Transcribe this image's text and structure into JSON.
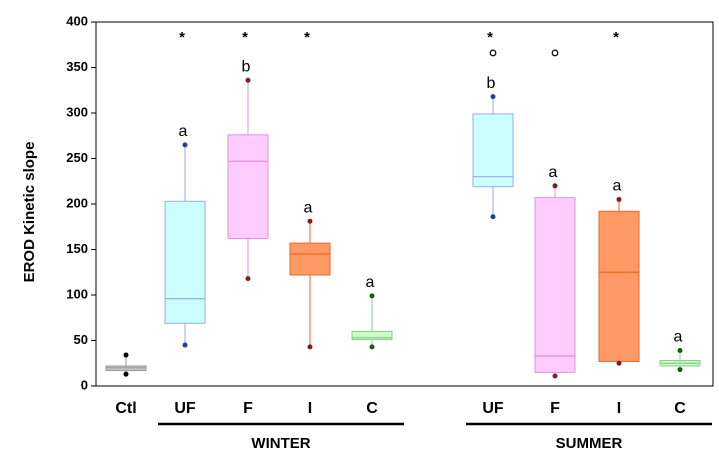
{
  "chart_data": {
    "type": "box",
    "ylabel": "EROD Kinetic slope",
    "ylim": [
      0,
      400
    ],
    "yticks": [
      0,
      50,
      100,
      150,
      200,
      250,
      300,
      350,
      400
    ],
    "groups": [
      {
        "categories": [
          "Ctl"
        ],
        "boxes": [
          {
            "min": 13,
            "q1": 17,
            "median": 20,
            "q3": 22,
            "max": 34,
            "color": "#c8c8c8",
            "edge": "#999999",
            "dot_color": "#000000"
          }
        ]
      },
      {
        "name": "WINTER",
        "categories": [
          "UF",
          "F",
          "I",
          "C"
        ],
        "boxes": [
          {
            "min": 45,
            "q1": 69,
            "median": 96,
            "q3": 203,
            "max": 265,
            "color": "#ccffff",
            "edge": "#99aaee",
            "dot_color": "#1f3f9f",
            "star": "*",
            "letter": "a"
          },
          {
            "min": 118,
            "q1": 162,
            "median": 247,
            "q3": 276,
            "max": 336,
            "color": "#ffccff",
            "edge": "#e090e0",
            "dot_color": "#8b1a1a",
            "star": "*",
            "letter": "b"
          },
          {
            "min": 43,
            "q1": 122,
            "median": 145,
            "q3": 157,
            "max": 181,
            "color": "#ff9966",
            "edge": "#ee6622",
            "dot_color": "#8b1a1a",
            "star": "*",
            "letter": "a"
          },
          {
            "min": 43,
            "q1": 51,
            "median": 53,
            "q3": 60,
            "max": 99,
            "color": "#ccffcc",
            "edge": "#88cc88",
            "dot_color": "#1a5a1a",
            "letter": "a"
          }
        ]
      },
      {
        "name": "SUMMER",
        "categories": [
          "UF",
          "F",
          "I",
          "C"
        ],
        "boxes": [
          {
            "min": 186,
            "q1": 219,
            "median": 230,
            "q3": 299,
            "max": 318,
            "outliers": [
              366
            ],
            "color": "#ccffff",
            "edge": "#99aaee",
            "dot_color": "#1f3f9f",
            "star": "*",
            "letter": "b"
          },
          {
            "min": 11,
            "q1": 15,
            "median": 33,
            "q3": 207,
            "max": 220,
            "outliers": [
              366
            ],
            "color": "#ffccff",
            "edge": "#e090e0",
            "dot_color": "#8b1a1a",
            "letter": "a"
          },
          {
            "min": 25,
            "q1": 27,
            "median": 125,
            "q3": 192,
            "max": 205,
            "color": "#ff9966",
            "edge": "#ee6622",
            "dot_color": "#8b1a1a",
            "star": "*",
            "letter": "a"
          },
          {
            "min": 18,
            "q1": 22,
            "median": 25,
            "q3": 28,
            "max": 39,
            "color": "#ccffcc",
            "edge": "#88cc88",
            "dot_color": "#1a5a1a",
            "letter": "a"
          }
        ]
      }
    ]
  }
}
